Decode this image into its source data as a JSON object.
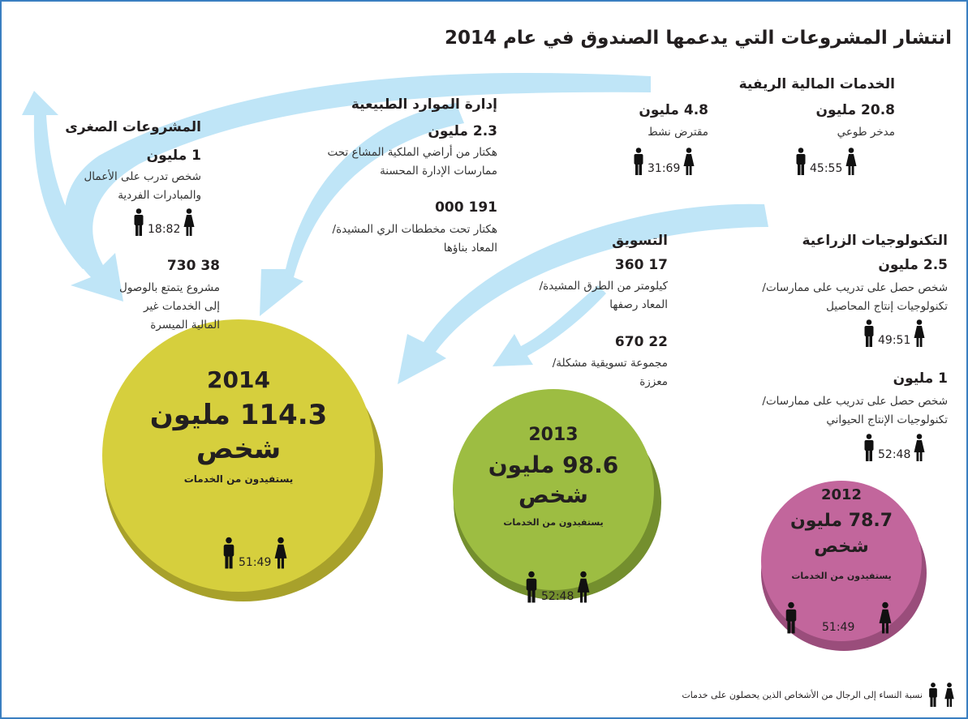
{
  "title": "انتشار المشروعات التي يدعمها الصندوق في عام 2014",
  "rural_finance": {
    "heading": "الخدمات المالية الريفية",
    "items": [
      {
        "value": "20.8 مليون",
        "desc": "مدخر طوعي",
        "ratio": "45:55"
      },
      {
        "value": "4.8 مليون",
        "desc": "مقترض نشط",
        "ratio": "31:69"
      }
    ]
  },
  "natural_resources": {
    "heading": "إدارة الموارد الطبيعية",
    "items": [
      {
        "value": "2.3 مليون",
        "desc": "هكتار من أراضي الملكية المشاع تحت ممارسات الإدارة المحسنة"
      },
      {
        "value": "191 000",
        "desc": "هكتار تحت مخططات الري المشيدة/المعاد بناؤها"
      }
    ]
  },
  "microenterprise": {
    "heading": "المشروعات الصغرى",
    "items": [
      {
        "value": "1 مليون",
        "desc": "شخص تدرب على الأعمال والمبادرات الفردية",
        "ratio": "18:82"
      },
      {
        "value": "38 730",
        "desc": "مشروع يتمتع بالوصول إلى الخدمات غير المالية الميسرة"
      }
    ]
  },
  "agri_tech": {
    "heading": "التكنولوجيات الزراعية",
    "items": [
      {
        "value": "2.5 مليون",
        "desc": "شخص حصل على تدريب على ممارسات/تكنولوجيات إنتاج المحاصيل",
        "ratio": "49:51"
      },
      {
        "value": "1 مليون",
        "desc": "شخص حصل على تدريب على ممارسات/تكنولوجيات الإنتاج الحيواني",
        "ratio": "52:48"
      }
    ]
  },
  "marketing": {
    "heading": "التسويق",
    "items": [
      {
        "value": "17 360",
        "desc": "كيلومتر من الطرق المشيدة/المعاد رصفها"
      },
      {
        "value": "22 670",
        "desc": "مجموعة تسويقية مشكلة/معززة"
      }
    ]
  },
  "circles": [
    {
      "year": "2014",
      "value": "114.3 مليون",
      "unit": "شخص",
      "caption": "يستفيدون من الخدمات",
      "ratio": "51:49"
    },
    {
      "year": "2013",
      "value": "98.6 مليون",
      "unit": "شخص",
      "caption": "يستفيدون من الخدمات",
      "ratio": "52:48"
    },
    {
      "year": "2012",
      "value": "78.7 مليون",
      "unit": "شخص",
      "caption": "يستفيدون من الخدمات",
      "ratio": "51:49"
    }
  ],
  "legend": "نسبة النساء إلى الرجال من الأشخاص الذين يحصلون على خدمات"
}
